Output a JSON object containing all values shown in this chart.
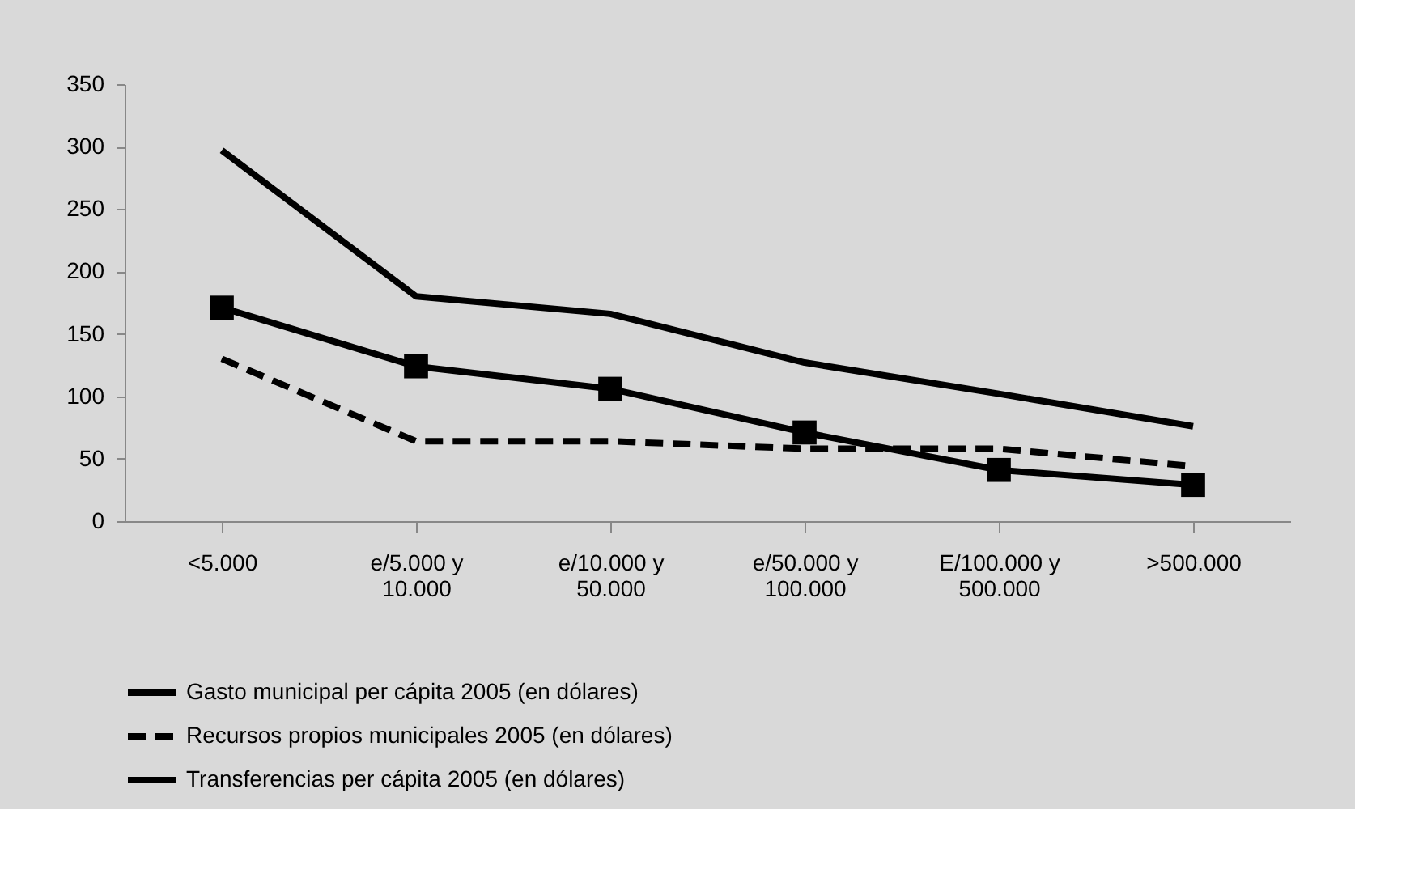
{
  "chart_data": {
    "type": "line",
    "categories": [
      "<5.000",
      "e/5.000 y 10.000",
      "e/10.000 y 50.000",
      "e/50.000 y 100.000",
      "E/100.000 y 500.000",
      ">500.000"
    ],
    "series": [
      {
        "name": "Gasto municipal per cápita 2005 (en dólares)",
        "color": "#000000",
        "line_style": "solid",
        "marker": "none",
        "values": [
          297,
          180,
          166,
          127,
          102,
          76
        ]
      },
      {
        "name": "Recursos propios municipales 2005 (en dólares)",
        "color": "#000000",
        "line_style": "dashed",
        "marker": "none",
        "values": [
          130,
          64,
          64,
          58,
          58,
          44
        ]
      },
      {
        "name": "Transferencias per cápita 2005 (en dólares)",
        "color": "#000000",
        "line_style": "solid",
        "marker": "square",
        "values": [
          171,
          124,
          106,
          71,
          41,
          29
        ]
      }
    ],
    "ylim": [
      0,
      350
    ],
    "yticks": [
      0,
      50,
      100,
      150,
      200,
      250,
      300,
      350
    ],
    "legend": "bottom"
  }
}
